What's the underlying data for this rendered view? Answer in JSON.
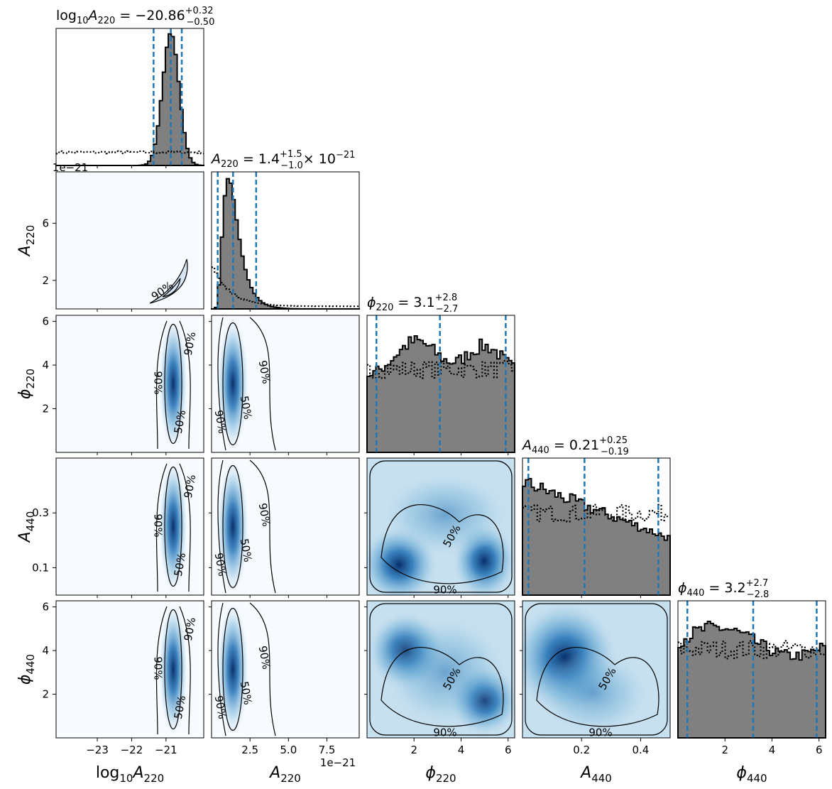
{
  "chart_data": {
    "type": "corner",
    "parameters": [
      {
        "key": "log10A220",
        "label_main": "log",
        "label_sub1": "10",
        "label_mid": "A",
        "label_sub2": "220",
        "range": [
          -24.2,
          -19.9
        ],
        "ticks": [
          -23,
          -22,
          -21
        ],
        "tick_labels": [
          "−23",
          "−22",
          "−21"
        ],
        "median": -20.86,
        "lo": -21.36,
        "hi": -20.54,
        "title": {
          "prefix": "log",
          "prefix_sub": "10",
          "sym": "A",
          "sym_sub": "220",
          "value": " = −20.86",
          "sup": "+0.32",
          "sub": "−0.50",
          "suffix": ""
        },
        "peak": -20.86,
        "width": 0.24,
        "flat": 0.1
      },
      {
        "key": "A220",
        "label_main": "",
        "label_sub1": "",
        "label_mid": "A",
        "label_sub2": "220",
        "range": [
          0,
          9.6
        ],
        "ticks": [
          2.5,
          5.0,
          7.5
        ],
        "tick_labels": [
          "2.5",
          "5.0",
          "7.5"
        ],
        "y_ticks": [
          2,
          6
        ],
        "y_tick_labels": [
          "2",
          "6"
        ],
        "median": 1.4,
        "lo": 0.4,
        "hi": 2.9,
        "title": {
          "prefix": "",
          "prefix_sub": "",
          "sym": "A",
          "sym_sub": "220",
          "value": " = 1.4",
          "sup": "+1.5",
          "sub": "−1.0",
          "suffix": "× 10"
        },
        "peak": 1.1,
        "width": 0.7,
        "flat": 0.02
      },
      {
        "key": "phi220",
        "label_main": "",
        "label_sub1": "",
        "label_mid": "ϕ",
        "label_sub2": "220",
        "range": [
          0,
          6.28
        ],
        "ticks": [
          2,
          4,
          6
        ],
        "tick_labels": [
          "2",
          "4",
          "6"
        ],
        "y_ticks": [
          2,
          4,
          6
        ],
        "y_tick_labels": [
          "2",
          "4",
          "6"
        ],
        "median": 3.1,
        "lo": 0.4,
        "hi": 5.9,
        "title": {
          "prefix": "",
          "prefix_sub": "",
          "sym": "ϕ",
          "sym_sub": "220",
          "value": " = 3.1",
          "sup": "+2.8",
          "sub": "−2.7",
          "suffix": ""
        }
      },
      {
        "key": "A440",
        "label_main": "",
        "label_sub1": "",
        "label_mid": "A",
        "label_sub2": "440",
        "range": [
          0,
          0.5
        ],
        "ticks": [
          0.2,
          0.4
        ],
        "tick_labels": [
          "0.2",
          "0.4"
        ],
        "y_ticks": [
          0.1,
          0.3
        ],
        "y_tick_labels": [
          "0.1",
          "0.3"
        ],
        "median": 0.21,
        "lo": 0.02,
        "hi": 0.46,
        "title": {
          "prefix": "",
          "prefix_sub": "",
          "sym": "A",
          "sym_sub": "440",
          "value": " = 0.21",
          "sup": "+0.25",
          "sub": "−0.19",
          "suffix": ""
        }
      },
      {
        "key": "phi440",
        "label_main": "",
        "label_sub1": "",
        "label_mid": "ϕ",
        "label_sub2": "440",
        "range": [
          0,
          6.28
        ],
        "ticks": [
          2,
          4,
          6
        ],
        "tick_labels": [
          "2",
          "4",
          "6"
        ],
        "y_ticks": [
          2,
          4,
          6
        ],
        "y_tick_labels": [
          "2",
          "4",
          "6"
        ],
        "median": 3.2,
        "lo": 0.4,
        "hi": 5.9,
        "title": {
          "prefix": "",
          "prefix_sub": "",
          "sym": "ϕ",
          "sym_sub": "440",
          "value": " = 3.2",
          "sup": "+2.7",
          "sub": "−2.8",
          "suffix": ""
        }
      }
    ],
    "title_exponent": "−21",
    "offset_label": "1e−21",
    "contour_levels": [
      "50%",
      "90%"
    ],
    "legend": "none",
    "grid": false,
    "colors": {
      "hist_fill": "#808080",
      "hist_edge": "#000000",
      "prior_line": "#000000",
      "quantile_line": "#1f77b4",
      "density_low": "#f7fbff",
      "density_high": "#08306b"
    }
  }
}
